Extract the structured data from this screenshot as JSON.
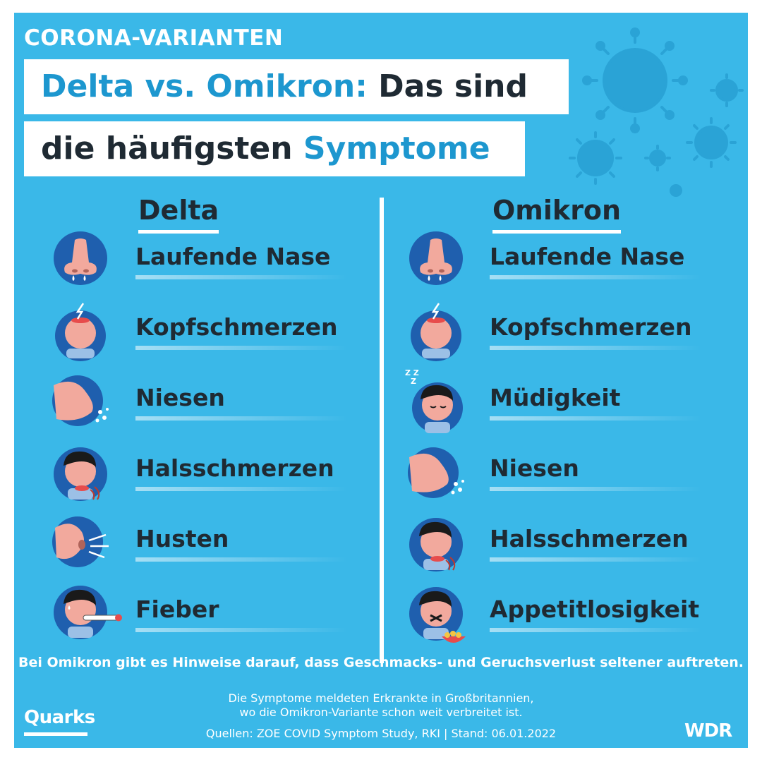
{
  "header": {
    "kicker": "CORONA-VARIANTEN",
    "title_line1_accent": "Delta vs. Omikron:",
    "title_line1_rest": " Das sind",
    "title_line2_start": "die häufigsten ",
    "title_line2_accent": "Symptome"
  },
  "columns": {
    "delta": {
      "heading": "Delta",
      "items": [
        {
          "label": "Laufende Nase",
          "icon": "runny-nose-icon"
        },
        {
          "label": "Kopfschmerzen",
          "icon": "headache-icon"
        },
        {
          "label": "Niesen",
          "icon": "sneezing-icon"
        },
        {
          "label": "Halsschmerzen",
          "icon": "sore-throat-icon"
        },
        {
          "label": "Husten",
          "icon": "cough-icon"
        },
        {
          "label": "Fieber",
          "icon": "fever-icon"
        }
      ]
    },
    "omikron": {
      "heading": "Omikron",
      "items": [
        {
          "label": "Laufende Nase",
          "icon": "runny-nose-icon"
        },
        {
          "label": "Kopfschmerzen",
          "icon": "headache-icon"
        },
        {
          "label": "Müdigkeit",
          "icon": "fatigue-icon"
        },
        {
          "label": "Niesen",
          "icon": "sneezing-icon"
        },
        {
          "label": "Halsschmerzen",
          "icon": "sore-throat-icon"
        },
        {
          "label": "Appetitlosigkeit",
          "icon": "loss-of-appetite-icon"
        }
      ]
    }
  },
  "footer": {
    "note": "Bei Omikron gibt es Hinweise darauf, dass Geschmacks- und Geruchsverlust seltener auftreten.",
    "info_line1": "Die Symptome meldeten Erkrankte in Großbritannien,",
    "info_line2": "wo die Omikron-Variante schon weit verbreitet ist.",
    "sources": "Quellen: ZOE COVID Symptom Study, RKI | Stand: 06.01.2022"
  },
  "logos": {
    "quarks": "Quarks",
    "wdr": "WDR"
  },
  "colors": {
    "background": "#3ab8e8",
    "accent": "#1d97cf",
    "text": "#1f2a33",
    "icon_circle": "#1f5fae",
    "skin": "#f2a99d"
  }
}
